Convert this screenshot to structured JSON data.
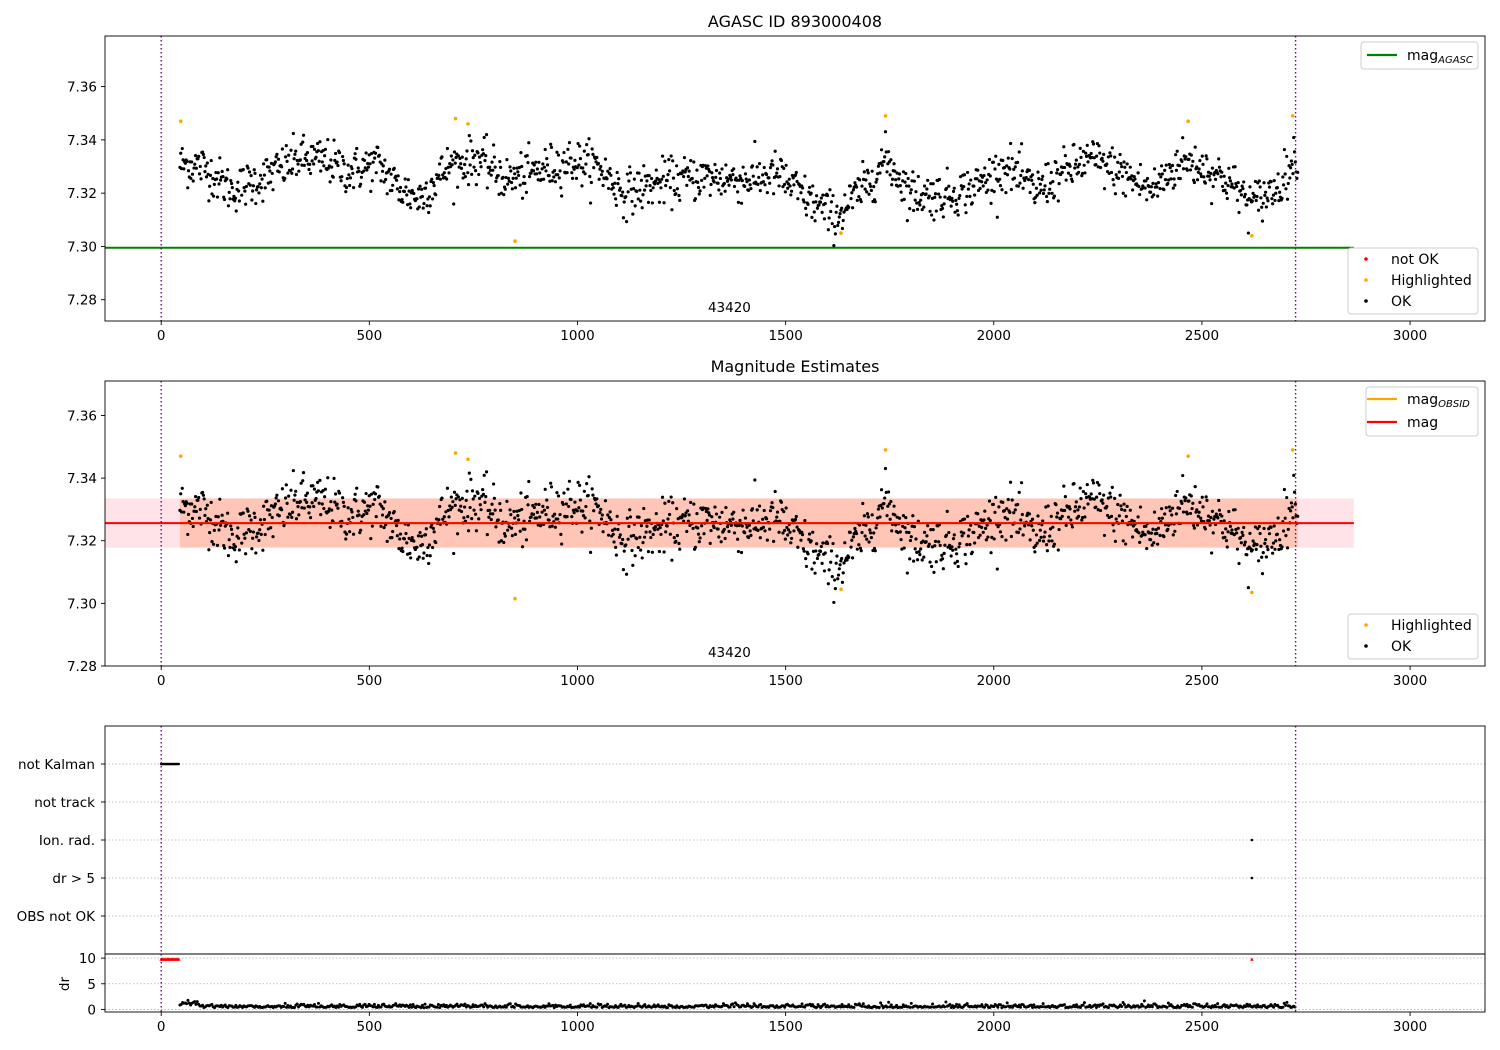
{
  "figure": {
    "width": 1500,
    "height": 1050
  },
  "chart_data": [
    {
      "id": "agasc",
      "type": "scatter",
      "title": "AGASC ID 893000408",
      "xlim": [
        -135,
        3180
      ],
      "ylim": [
        7.272,
        7.379
      ],
      "x_ticks": [
        0,
        500,
        1000,
        1500,
        2000,
        2500,
        3000
      ],
      "y_ticks": [
        7.28,
        7.3,
        7.32,
        7.34,
        7.36
      ],
      "y_tick_labels": [
        "7.28",
        "7.30",
        "7.32",
        "7.34",
        "7.36"
      ],
      "vlines": [
        0,
        2725
      ],
      "obsid_label": "43420",
      "obsid_x": 1365,
      "hline": {
        "label": "mag",
        "label_sub": "AGASC",
        "value": 7.2995,
        "x_range": [
          -135,
          2865
        ],
        "color": "#008000"
      },
      "legend_top": [
        {
          "kind": "line",
          "label": "mag",
          "sub": "AGASC",
          "color": "#008000"
        }
      ],
      "legend_bottom": [
        {
          "kind": "dot",
          "label": "not OK",
          "color": "#ff0000"
        },
        {
          "kind": "dot",
          "label": "Highlighted",
          "color": "#ffa500"
        },
        {
          "kind": "dot",
          "label": "OK",
          "color": "#000000"
        }
      ],
      "series": [
        {
          "name": "OK",
          "color": "#000000",
          "n": 1430,
          "x_range": [
            45,
            2730
          ]
        },
        {
          "name": "Highlighted",
          "color": "#ffa500",
          "points": [
            [
              47,
              7.347
            ],
            [
              707,
              7.348
            ],
            [
              737,
              7.346
            ],
            [
              850,
              7.302
            ],
            [
              1633,
              7.305
            ],
            [
              1740,
              7.349
            ],
            [
              2467,
              7.347
            ],
            [
              2620,
              7.304
            ],
            [
              2718,
              7.349
            ]
          ]
        }
      ]
    },
    {
      "id": "mag",
      "type": "scatter",
      "title": "Magnitude Estimates",
      "xlim": [
        -135,
        3180
      ],
      "ylim": [
        7.28,
        7.371
      ],
      "x_ticks": [
        0,
        500,
        1000,
        1500,
        2000,
        2500,
        3000
      ],
      "y_ticks": [
        7.28,
        7.3,
        7.32,
        7.34,
        7.36
      ],
      "y_tick_labels": [
        "7.28",
        "7.30",
        "7.32",
        "7.34",
        "7.36"
      ],
      "vlines": [
        0,
        2725
      ],
      "obsid_label": "43420",
      "obsid_x": 1365,
      "mag": 7.3256,
      "band_outer": [
        7.3178,
        7.3335
      ],
      "band_inner": [
        7.3178,
        7.3335
      ],
      "band_x_range": [
        -135,
        2865
      ],
      "band_inner_x_range": [
        45,
        2730
      ],
      "legend_top": [
        {
          "kind": "line",
          "label": "mag",
          "sub": "OBSID",
          "color": "#ffa500"
        },
        {
          "kind": "line",
          "label": "mag",
          "sub": "",
          "color": "#ff0000"
        }
      ],
      "legend_bottom": [
        {
          "kind": "dot",
          "label": "Highlighted",
          "color": "#ffa500"
        },
        {
          "kind": "dot",
          "label": "OK",
          "color": "#000000"
        }
      ],
      "series": [
        {
          "name": "OK",
          "color": "#000000",
          "n": 1430,
          "x_range": [
            45,
            2730
          ]
        },
        {
          "name": "Highlighted",
          "color": "#ffa500",
          "points": [
            [
              47,
              7.347
            ],
            [
              707,
              7.348
            ],
            [
              737,
              7.346
            ],
            [
              850,
              7.3015
            ],
            [
              1633,
              7.3045
            ],
            [
              1740,
              7.349
            ],
            [
              2467,
              7.347
            ],
            [
              2620,
              7.3035
            ],
            [
              2718,
              7.349
            ]
          ]
        }
      ]
    },
    {
      "id": "flags",
      "type": "scatter",
      "categories": [
        "not Kalman",
        "not track",
        "Ion. rad.",
        "dr > 5",
        "OBS not OK"
      ],
      "xlim": [
        -135,
        3180
      ],
      "vlines": [
        0,
        2725
      ],
      "points": [
        {
          "category": "not Kalman",
          "x_range": [
            0,
            42
          ]
        },
        {
          "category": "Ion. rad.",
          "x": 2620
        },
        {
          "category": "dr > 5",
          "x": 2620
        }
      ]
    },
    {
      "id": "dr",
      "type": "scatter",
      "ylabel": "dr",
      "xlim": [
        -135,
        3180
      ],
      "ylim": [
        -0.5,
        10.8
      ],
      "y_ticks": [
        0,
        5,
        10
      ],
      "y_tick_labels": [
        "0",
        "5",
        "10"
      ],
      "x_ticks": [
        0,
        500,
        1000,
        1500,
        2000,
        2500,
        3000
      ],
      "vlines": [
        0,
        2725
      ],
      "series": [
        {
          "name": "dr",
          "color": "#000000",
          "x_range": [
            45,
            2725
          ],
          "typical": 0.5
        },
        {
          "name": "clipped",
          "color": "#ff0000",
          "value": 9.8,
          "x_range": [
            0,
            42
          ],
          "extra_x": [
            2620
          ]
        }
      ]
    }
  ]
}
